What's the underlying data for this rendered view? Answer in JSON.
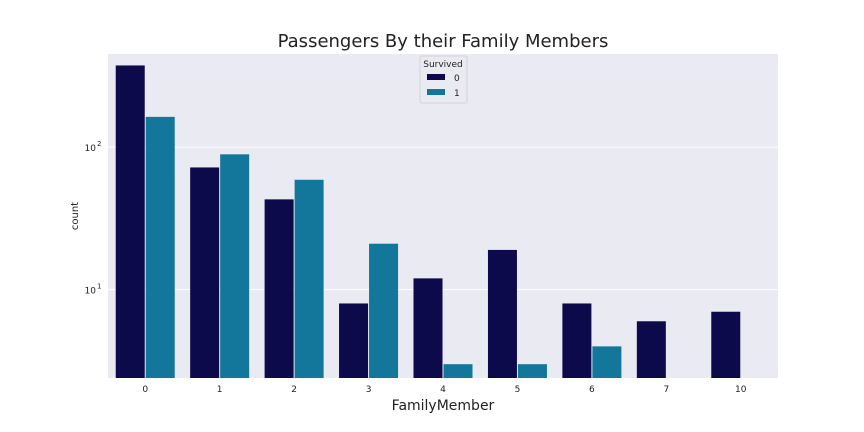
{
  "chart_data": {
    "type": "bar",
    "title": "Passengers By their Family Members",
    "xlabel": "FamilyMember",
    "ylabel": "count",
    "categories": [
      "0",
      "1",
      "2",
      "3",
      "4",
      "5",
      "6",
      "7",
      "10"
    ],
    "yscale": "log",
    "ylim": [
      2.4,
      450
    ],
    "yticks": [
      {
        "base": "10",
        "exp": "1",
        "value": 10
      },
      {
        "base": "10",
        "exp": "2",
        "value": 100
      }
    ],
    "grid": true,
    "legend": {
      "title": "Survived",
      "placement": "top-center"
    },
    "series": [
      {
        "name": "0",
        "color": "#0c0a4a",
        "values": [
          374,
          72,
          43,
          8,
          12,
          19,
          8,
          6,
          7
        ]
      },
      {
        "name": "1",
        "color": "#12779a",
        "values": [
          163,
          89,
          59,
          21,
          3,
          3,
          4,
          null,
          null
        ]
      }
    ]
  }
}
